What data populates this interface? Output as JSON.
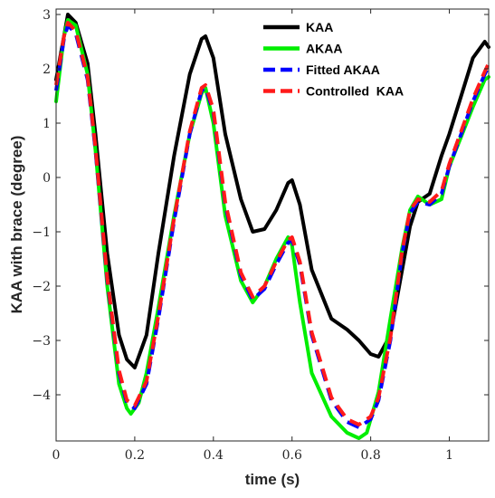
{
  "chart_data": {
    "type": "line",
    "xlabel": "time (s)",
    "ylabel": "KAA with brace (degree)",
    "xlim": [
      0,
      1.1
    ],
    "ylim": [
      -4.85,
      3.1
    ],
    "xticks": [
      0,
      0.2,
      0.4,
      0.6,
      0.8,
      1
    ],
    "xtick_labels": [
      "0",
      "0.2",
      "0.4",
      "0.6",
      "0.8",
      "1"
    ],
    "yticks": [
      3,
      2,
      1,
      0,
      -1,
      -2,
      -3,
      -4
    ],
    "ytick_labels": [
      "3",
      "2",
      "1",
      "0",
      "−1",
      "−2",
      "−3",
      "−4"
    ],
    "grid": false,
    "legend_position": "top-right",
    "series": [
      {
        "name": "KAA",
        "color": "#000000",
        "style": "solid",
        "x": [
          0.0,
          0.02,
          0.03,
          0.05,
          0.08,
          0.1,
          0.13,
          0.16,
          0.18,
          0.2,
          0.23,
          0.26,
          0.3,
          0.34,
          0.37,
          0.38,
          0.4,
          0.43,
          0.47,
          0.5,
          0.53,
          0.56,
          0.59,
          0.6,
          0.62,
          0.65,
          0.7,
          0.74,
          0.77,
          0.8,
          0.82,
          0.85,
          0.88,
          0.9,
          0.92,
          0.95,
          0.98,
          1.0,
          1.03,
          1.06,
          1.09,
          1.1
        ],
        "y": [
          1.8,
          2.6,
          3.0,
          2.85,
          2.1,
          0.8,
          -1.4,
          -2.9,
          -3.35,
          -3.5,
          -2.9,
          -1.4,
          0.4,
          1.9,
          2.55,
          2.6,
          2.2,
          0.8,
          -0.4,
          -1.0,
          -0.95,
          -0.6,
          -0.1,
          -0.05,
          -0.5,
          -1.7,
          -2.6,
          -2.8,
          -3.0,
          -3.25,
          -3.3,
          -2.9,
          -1.7,
          -0.9,
          -0.45,
          -0.3,
          0.4,
          0.8,
          1.5,
          2.2,
          2.5,
          2.4
        ]
      },
      {
        "name": "AKAA",
        "color": "#00ee00",
        "style": "solid",
        "x": [
          0.0,
          0.02,
          0.03,
          0.05,
          0.08,
          0.1,
          0.13,
          0.16,
          0.18,
          0.19,
          0.21,
          0.23,
          0.26,
          0.3,
          0.34,
          0.37,
          0.38,
          0.4,
          0.43,
          0.47,
          0.5,
          0.53,
          0.56,
          0.59,
          0.6,
          0.62,
          0.65,
          0.7,
          0.74,
          0.77,
          0.79,
          0.82,
          0.85,
          0.88,
          0.9,
          0.92,
          0.95,
          0.98,
          1.0,
          1.03,
          1.06,
          1.09,
          1.1
        ],
        "y": [
          1.4,
          2.6,
          2.9,
          2.8,
          1.9,
          0.5,
          -2.0,
          -3.8,
          -4.25,
          -4.35,
          -4.15,
          -3.6,
          -2.4,
          -0.7,
          0.8,
          1.55,
          1.65,
          1.0,
          -0.7,
          -1.9,
          -2.3,
          -2.0,
          -1.5,
          -1.1,
          -1.25,
          -2.3,
          -3.6,
          -4.4,
          -4.7,
          -4.8,
          -4.7,
          -3.95,
          -2.6,
          -1.3,
          -0.6,
          -0.35,
          -0.5,
          -0.4,
          0.2,
          0.75,
          1.3,
          1.8,
          1.85
        ]
      },
      {
        "name": "Fitted AKAA",
        "color": "#0000ff",
        "style": "dashed",
        "x": [
          0.0,
          0.02,
          0.03,
          0.05,
          0.08,
          0.1,
          0.13,
          0.16,
          0.18,
          0.2,
          0.23,
          0.26,
          0.3,
          0.34,
          0.37,
          0.38,
          0.4,
          0.43,
          0.47,
          0.5,
          0.53,
          0.56,
          0.59,
          0.6,
          0.62,
          0.65,
          0.7,
          0.74,
          0.77,
          0.8,
          0.82,
          0.85,
          0.88,
          0.9,
          0.92,
          0.95,
          0.98,
          1.0,
          1.03,
          1.06,
          1.09,
          1.1
        ],
        "y": [
          1.6,
          2.55,
          2.8,
          2.65,
          1.8,
          0.5,
          -1.9,
          -3.6,
          -4.15,
          -4.25,
          -3.8,
          -2.6,
          -0.8,
          0.8,
          1.6,
          1.65,
          1.2,
          -0.5,
          -1.8,
          -2.25,
          -2.05,
          -1.6,
          -1.2,
          -1.15,
          -1.6,
          -2.9,
          -4.1,
          -4.5,
          -4.6,
          -4.45,
          -4.1,
          -3.0,
          -1.4,
          -0.65,
          -0.45,
          -0.5,
          -0.3,
          0.2,
          0.8,
          1.4,
          1.9,
          2.05
        ]
      },
      {
        "name": "Controlled  KAA",
        "color": "#ff1a1a",
        "style": "dashed",
        "x": [
          0.0,
          0.02,
          0.03,
          0.05,
          0.08,
          0.1,
          0.13,
          0.16,
          0.18,
          0.2,
          0.23,
          0.26,
          0.3,
          0.34,
          0.37,
          0.38,
          0.4,
          0.43,
          0.47,
          0.5,
          0.53,
          0.56,
          0.59,
          0.6,
          0.62,
          0.65,
          0.7,
          0.74,
          0.77,
          0.8,
          0.82,
          0.85,
          0.88,
          0.9,
          0.92,
          0.95,
          0.98,
          1.0,
          1.03,
          1.06,
          1.09,
          1.1
        ],
        "y": [
          1.7,
          2.6,
          2.85,
          2.7,
          1.85,
          0.55,
          -1.85,
          -3.55,
          -4.1,
          -4.2,
          -3.75,
          -2.55,
          -0.75,
          0.85,
          1.65,
          1.7,
          1.25,
          -0.45,
          -1.75,
          -2.2,
          -2.0,
          -1.55,
          -1.15,
          -1.1,
          -1.55,
          -2.85,
          -4.05,
          -4.45,
          -4.55,
          -4.4,
          -4.05,
          -2.95,
          -1.35,
          -0.6,
          -0.4,
          -0.45,
          -0.25,
          0.25,
          0.85,
          1.45,
          1.95,
          2.1
        ]
      }
    ]
  }
}
